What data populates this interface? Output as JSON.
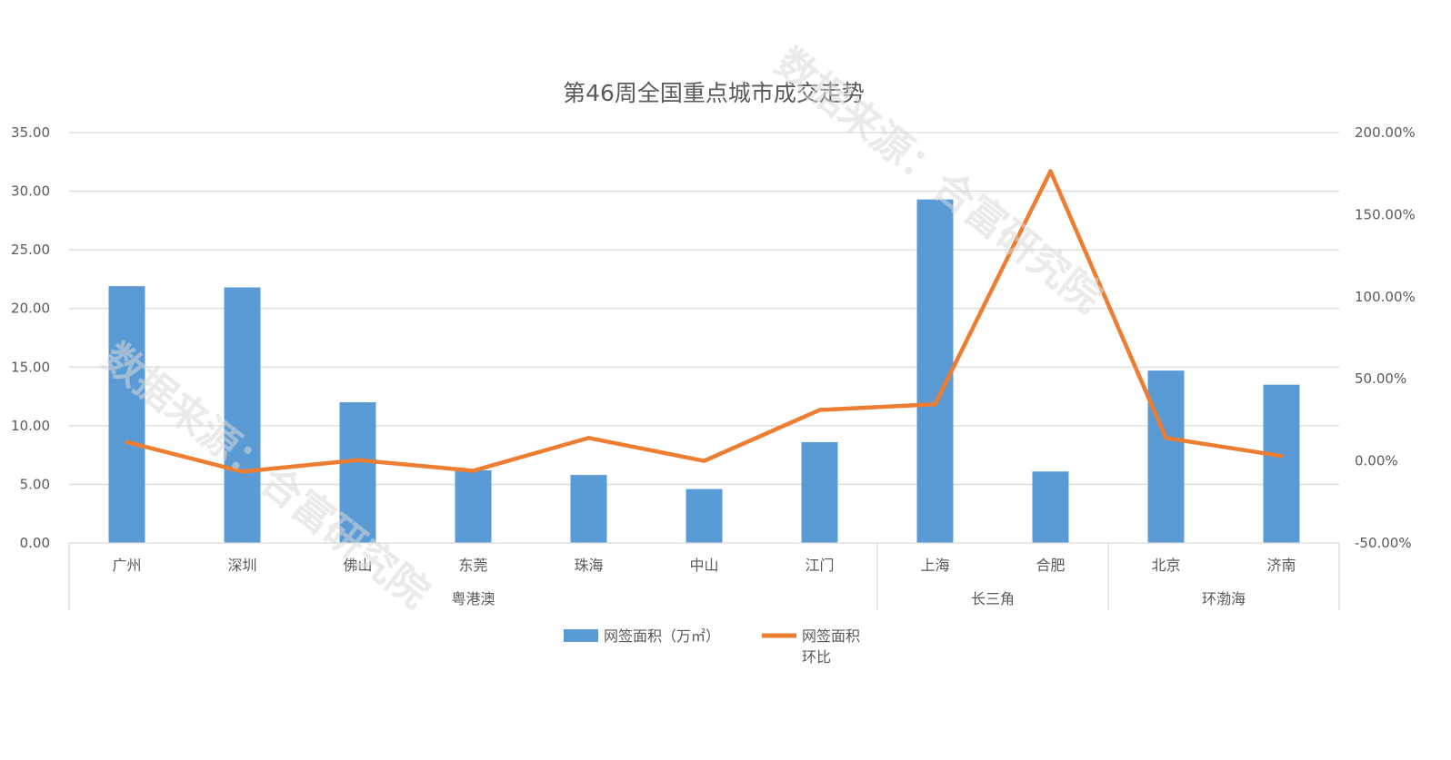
{
  "chart_data": {
    "type": "bar",
    "title": "第46周全国重点城市成交走势",
    "categories": [
      "广州",
      "深圳",
      "佛山",
      "东莞",
      "珠海",
      "中山",
      "江门",
      "上海",
      "合肥",
      "北京",
      "济南"
    ],
    "groups": [
      {
        "label": "粤港澳",
        "count": 7
      },
      {
        "label": "长三角",
        "count": 2
      },
      {
        "label": "环渤海",
        "count": 2
      }
    ],
    "series": [
      {
        "name": "网签面积（万㎡）",
        "type": "bar",
        "axis": "left",
        "color": "#5b9bd5",
        "values": [
          21.9,
          21.8,
          12.0,
          6.2,
          5.8,
          4.6,
          8.6,
          29.3,
          6.1,
          14.7,
          13.5
        ]
      },
      {
        "name": "网签面积环比",
        "type": "line",
        "axis": "right",
        "color": "#ed7d31",
        "values": [
          11.5,
          -6.5,
          0.5,
          -6.0,
          14.0,
          0.0,
          31.0,
          34.5,
          176.5,
          14.0,
          3.0
        ]
      }
    ],
    "y_left": {
      "min": 0,
      "max": 35,
      "step": 5,
      "ticks": [
        "0.00",
        "5.00",
        "10.00",
        "15.00",
        "20.00",
        "25.00",
        "30.00",
        "35.00"
      ]
    },
    "y_right": {
      "min": -50,
      "max": 200,
      "step": 50,
      "ticks": [
        "-50.00%",
        "0.00%",
        "50.00%",
        "100.00%",
        "150.00%",
        "200.00%"
      ]
    },
    "grid": true,
    "legend_position": "bottom",
    "legend": {
      "bar_label": "网签面积（万㎡）",
      "line_label_1": "网签面积",
      "line_label_2": "环比"
    },
    "watermark": "数据来源：合富研究院"
  }
}
